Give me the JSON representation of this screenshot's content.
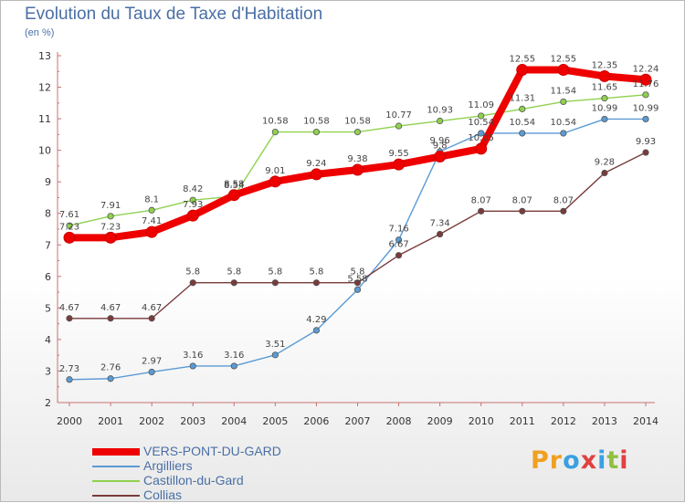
{
  "header": {
    "title": "Evolution du Taux de Taxe d'Habitation",
    "subtitle": "(en %)"
  },
  "chart_data": {
    "type": "line",
    "title": "Evolution du Taux de Taxe d'Habitation",
    "ylabel": "(en %)",
    "x": [
      "2000",
      "2001",
      "2002",
      "2003",
      "2004",
      "2005",
      "2006",
      "2007",
      "2008",
      "2009",
      "2010",
      "2011",
      "2012",
      "2013",
      "2014"
    ],
    "ylim": [
      2,
      13
    ],
    "yticks": [
      2,
      3,
      4,
      5,
      6,
      7,
      8,
      9,
      10,
      11,
      12,
      13
    ],
    "grid": false,
    "legend_position": "bottom-left",
    "series": [
      {
        "name": "VERS-PONT-DU-GARD",
        "color": "#ee0000",
        "values": [
          7.23,
          7.23,
          7.41,
          7.93,
          8.58,
          9.01,
          9.24,
          9.38,
          9.55,
          9.8,
          10.05,
          12.55,
          12.55,
          12.35,
          12.24
        ],
        "labels": [
          "7.23",
          "7.23",
          "7.41",
          "7.93",
          "8.58",
          "9.01",
          "9.24",
          "9.38",
          "9.55",
          "9.8",
          "10.05",
          "12.55",
          "12.55",
          "12.35",
          "12.24"
        ]
      },
      {
        "name": "Argilliers",
        "color": "#5b9bd5",
        "values": [
          2.73,
          2.76,
          2.97,
          3.16,
          3.16,
          3.51,
          4.29,
          5.58,
          7.16,
          9.96,
          10.54,
          10.54,
          10.54,
          10.99,
          10.99
        ],
        "labels": [
          "2.73",
          "2.76",
          "2.97",
          "3.16",
          "3.16",
          "3.51",
          "4.29",
          "5.58",
          "7.16",
          "9.96",
          "10.54",
          "10.54",
          "10.54",
          "10.99",
          "10.99"
        ]
      },
      {
        "name": "Castillon-du-Gard",
        "color": "#8fd14f",
        "values": [
          7.61,
          7.91,
          8.1,
          8.42,
          8.54,
          10.58,
          10.58,
          10.58,
          10.77,
          10.93,
          11.09,
          11.31,
          11.54,
          11.65,
          11.76
        ],
        "labels": [
          "7.61",
          "7.91",
          "8.1",
          "8.42",
          "8.54",
          "10.58",
          "10.58",
          "10.58",
          "10.77",
          "10.93",
          "11.09",
          "11.31",
          "11.54",
          "11.65",
          "11.76"
        ]
      },
      {
        "name": "Collias",
        "color": "#7a3b3b",
        "values": [
          4.67,
          4.67,
          4.67,
          5.8,
          5.8,
          5.8,
          5.8,
          5.8,
          6.67,
          7.34,
          8.07,
          8.07,
          8.07,
          9.28,
          9.93
        ],
        "labels": [
          "4.67",
          "4.67",
          "4.67",
          "5.8",
          "5.8",
          "5.8",
          "5.8",
          "5.8",
          "6.67",
          "7.34",
          "8.07",
          "8.07",
          "8.07",
          "9.28",
          "9.93"
        ]
      }
    ]
  },
  "legend": {
    "items": [
      {
        "label": "VERS-PONT-DU-GARD",
        "color": "#ee0000"
      },
      {
        "label": "Argilliers",
        "color": "#5b9bd5"
      },
      {
        "label": "Castillon-du-Gard",
        "color": "#8fd14f"
      },
      {
        "label": "Collias",
        "color": "#7a3b3b"
      }
    ]
  },
  "logo": {
    "text": "Proxiti",
    "letters": [
      {
        "ch": "P",
        "color": "#f0a020"
      },
      {
        "ch": "r",
        "color": "#f0a020"
      },
      {
        "ch": "o",
        "color": "#3aa0e0"
      },
      {
        "ch": "x",
        "color": "#e04040"
      },
      {
        "ch": "i",
        "color": "#3aa0e0"
      },
      {
        "ch": "t",
        "color": "#8fc040"
      },
      {
        "ch": "i",
        "color": "#e04040"
      }
    ]
  }
}
